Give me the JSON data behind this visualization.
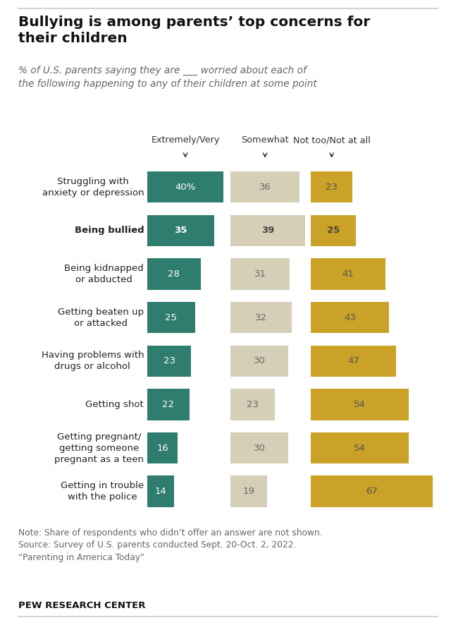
{
  "title": "Bullying is among parents’ top concerns for\ntheir children",
  "subtitle": "% of U.S. parents saying they are ___ worried about each of\nthe following happening to any of their children at some point",
  "categories": [
    "Struggling with\nanxiety or depression",
    "Being bullied",
    "Being kidnapped\nor abducted",
    "Getting beaten up\nor attacked",
    "Having problems with\ndrugs or alcohol",
    "Getting shot",
    "Getting pregnant/\ngetting someone\npregnant as a teen",
    "Getting in trouble\nwith the police"
  ],
  "bold_row": 1,
  "col_labels": [
    "Extremely/Very",
    "Somewhat",
    "Not too/Not at all"
  ],
  "col1_values": [
    40,
    35,
    28,
    25,
    23,
    22,
    16,
    14
  ],
  "col2_values": [
    36,
    39,
    31,
    32,
    30,
    23,
    30,
    19
  ],
  "col3_values": [
    23,
    25,
    41,
    43,
    47,
    54,
    54,
    67
  ],
  "col1_color": "#2e7d6e",
  "col2_color": "#d5cfb8",
  "col3_color": "#c9a227",
  "col1_text_color_light": "#ffffff",
  "col2_text_color": "#666666",
  "col3_text_color": "#555555",
  "note": "Note: Share of respondents who didn’t offer an answer are not shown.\nSource: Survey of U.S. parents conducted Sept. 20-Oct. 2, 2022.\n“Parenting in America Today”",
  "footer": "PEW RESEARCH CENTER",
  "background_color": "#ffffff",
  "title_color": "#111111",
  "subtitle_color": "#666666",
  "label_color": "#222222",
  "header_color": "#333333",
  "note_color": "#666666",
  "footer_color": "#111111"
}
